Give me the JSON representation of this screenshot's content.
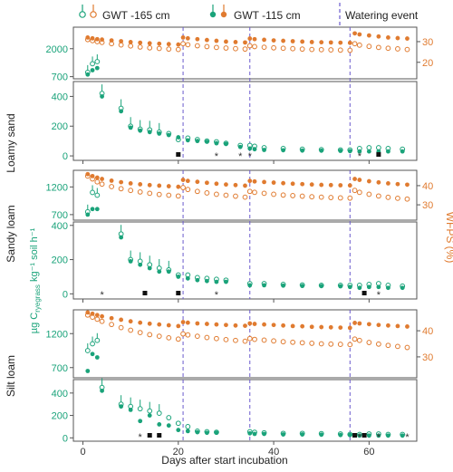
{
  "figure": {
    "x_axis_label": "Days after start incubation",
    "left_axis_label": "µg C",
    "left_axis_label_sub": "ryegrass",
    "left_axis_label_rest": " kg⁻¹ soil h⁻¹",
    "right_axis_label": "WFPS (%)"
  },
  "legend": {
    "gwt165": "GWT -165 cm",
    "gwt115": "GWT -115 cm",
    "watering": "Watering event"
  },
  "colors": {
    "green": "#1aa37a",
    "orange": "#e07b30",
    "watering_line": "#6a5acd"
  },
  "chart_data": [
    {
      "soil": "Loamy sand",
      "type": "scatter",
      "x_ticks": [
        0,
        20,
        40,
        60
      ],
      "watering_days": [
        21,
        35,
        56
      ],
      "top": {
        "left_ticks": [
          700,
          2000
        ],
        "ylim": [
          600,
          3000
        ],
        "right_ticks": [
          20,
          30
        ],
        "rlim": [
          12,
          37
        ],
        "wfps": {
          "x": [
            1,
            2,
            3,
            4,
            6,
            8,
            10,
            12,
            14,
            16,
            18,
            20,
            21,
            22,
            24,
            26,
            28,
            30,
            32,
            34,
            35,
            36,
            38,
            40,
            42,
            44,
            46,
            48,
            50,
            52,
            54,
            56,
            57,
            58,
            60,
            62,
            64,
            66,
            68
          ],
          "gwt115": [
            32,
            31.6,
            31.2,
            31,
            30.6,
            30.2,
            29.8,
            29.5,
            29.2,
            29,
            28.8,
            28.6,
            32,
            31.6,
            31.2,
            30.8,
            30.4,
            30,
            29.8,
            29.6,
            31.5,
            31.2,
            30.9,
            30.6,
            30.4,
            30.2,
            30,
            29.8,
            29.7,
            29.6,
            29.5,
            29.4,
            34,
            33.5,
            33,
            32.5,
            32,
            31.7,
            31.5
          ],
          "gwt165": [
            31,
            30.5,
            30,
            29.6,
            29,
            28.4,
            27.9,
            27.4,
            27,
            26.7,
            26.4,
            26.2,
            29,
            28.5,
            28,
            27.6,
            27.2,
            26.9,
            26.6,
            26.4,
            28,
            27.6,
            27.3,
            27,
            26.8,
            26.6,
            26.4,
            26.2,
            26.1,
            26,
            25.9,
            25.8,
            29,
            28.3,
            27.7,
            27.2,
            26.8,
            26.5,
            26.2
          ]
        },
        "resp": {
          "x": [
            1,
            2,
            3
          ],
          "gwt115": [
            800,
            1000,
            1100
          ],
          "gwt165": [
            900,
            1300,
            1400
          ]
        }
      },
      "bottom": {
        "left_ticks": [
          0,
          200,
          400
        ],
        "ylim": [
          -30,
          500
        ],
        "resp": {
          "x": [
            4,
            8,
            10,
            12,
            14,
            16,
            18,
            20,
            22,
            24,
            26,
            28,
            30,
            33,
            35,
            36,
            38,
            42,
            46,
            50,
            54,
            56,
            58,
            60,
            62,
            64,
            67
          ],
          "gwt115": [
            400,
            300,
            190,
            170,
            160,
            150,
            140,
            125,
            105,
            100,
            95,
            85,
            80,
            60,
            50,
            45,
            40,
            38,
            36,
            35,
            34,
            32,
            30,
            30,
            30,
            30,
            30
          ],
          "gwt165": [
            420,
            320,
            200,
            180,
            175,
            160,
            150,
            110,
            120,
            110,
            100,
            95,
            85,
            70,
            70,
            65,
            55,
            50,
            45,
            42,
            40,
            40,
            50,
            55,
            55,
            50,
            45
          ]
        },
        "stars": [
          28,
          33,
          35,
          58
        ],
        "squares": [
          20,
          62
        ]
      }
    },
    {
      "soil": "Sandy loam",
      "type": "scatter",
      "x_ticks": [
        0,
        20,
        40,
        60
      ],
      "watering_days": [
        21,
        35,
        56
      ],
      "top": {
        "left_ticks": [
          700,
          1200
        ],
        "ylim": [
          600,
          1500
        ],
        "right_ticks": [
          30,
          40
        ],
        "rlim": [
          22,
          48
        ],
        "wfps": {
          "x": [
            1,
            2,
            3,
            4,
            6,
            8,
            10,
            12,
            14,
            16,
            18,
            20,
            21,
            22,
            24,
            26,
            28,
            30,
            32,
            34,
            35,
            36,
            38,
            40,
            42,
            44,
            46,
            48,
            50,
            52,
            54,
            56,
            57,
            58,
            60,
            62,
            64,
            66,
            68
          ],
          "gwt115": [
            46,
            45,
            44.2,
            43.5,
            42.6,
            41.8,
            41.2,
            40.7,
            40.3,
            40,
            39.7,
            39.4,
            43,
            42.5,
            42,
            41.5,
            41,
            40.6,
            40.3,
            40,
            42.5,
            42.2,
            41.9,
            41.6,
            41.3,
            41,
            40.8,
            40.6,
            40.4,
            40.3,
            40.2,
            40.1,
            43.5,
            43,
            42.3,
            41.7,
            41.2,
            40.8,
            40.5
          ],
          "gwt165": [
            45,
            43.5,
            42,
            40.8,
            39.5,
            38.4,
            37.5,
            36.7,
            36,
            35.4,
            35,
            34.6,
            39,
            38,
            37,
            36.2,
            35.5,
            35,
            34.5,
            34,
            37,
            36.5,
            36,
            35.5,
            35.1,
            34.8,
            34.5,
            34.2,
            34,
            33.8,
            33.6,
            33.5,
            37.5,
            36.5,
            35.5,
            34.6,
            33.9,
            33.4,
            33
          ]
        },
        "resp": {
          "x": [
            1,
            2,
            3
          ],
          "gwt115": [
            700,
            800,
            800
          ],
          "gwt165": [
            750,
            1100,
            1050
          ]
        }
      },
      "bottom": {
        "left_ticks": [
          0,
          200,
          400
        ],
        "ylim": [
          -30,
          420
        ],
        "resp": {
          "x": [
            8,
            10,
            12,
            14,
            16,
            18,
            20,
            22,
            24,
            26,
            28,
            30,
            35,
            38,
            42,
            46,
            50,
            54,
            56,
            58,
            60,
            62,
            64,
            67
          ],
          "gwt115": [
            330,
            190,
            170,
            150,
            130,
            130,
            100,
            90,
            80,
            75,
            70,
            70,
            50,
            50,
            48,
            46,
            45,
            44,
            40,
            35,
            40,
            40,
            35,
            35
          ],
          "gwt165": [
            350,
            200,
            190,
            170,
            150,
            140,
            110,
            110,
            95,
            90,
            85,
            80,
            60,
            60,
            55,
            52,
            50,
            50,
            50,
            50,
            55,
            60,
            50,
            45
          ]
        },
        "stars": [
          4,
          28,
          62
        ],
        "squares": [
          13,
          20,
          59
        ]
      }
    },
    {
      "soil": "Silt loam",
      "type": "scatter",
      "x_ticks": [
        0,
        20,
        40,
        60
      ],
      "watering_days": [
        21,
        35,
        56
      ],
      "top": {
        "left_ticks": [
          700,
          1200
        ],
        "ylim": [
          550,
          1550
        ],
        "right_ticks": [
          30,
          40
        ],
        "rlim": [
          22,
          48
        ],
        "wfps": {
          "x": [
            1,
            2,
            3,
            4,
            6,
            8,
            10,
            12,
            14,
            16,
            18,
            20,
            21,
            22,
            24,
            26,
            28,
            30,
            32,
            34,
            35,
            36,
            38,
            40,
            42,
            44,
            46,
            48,
            50,
            52,
            54,
            56,
            57,
            58,
            60,
            62,
            64,
            66,
            68
          ],
          "gwt115": [
            47,
            46.5,
            46,
            45.5,
            44.8,
            44.2,
            43.6,
            43.1,
            42.7,
            42.4,
            42.1,
            41.8,
            43.3,
            43.1,
            42.8,
            42.6,
            42.4,
            42.2,
            42,
            41.9,
            42.8,
            42.6,
            42.4,
            42.2,
            42,
            41.8,
            41.7,
            41.5,
            41.4,
            41.3,
            41.2,
            41.1,
            43,
            42.8,
            42.5,
            42.2,
            42,
            41.8,
            41.6
          ],
          "gwt165": [
            46,
            45.2,
            44.4,
            43.6,
            42.4,
            41.2,
            40.2,
            39.3,
            38.5,
            37.9,
            37.3,
            36.8,
            38.8,
            38.4,
            37.9,
            37.4,
            37,
            36.6,
            36.3,
            36,
            37,
            36.7,
            36.4,
            36.1,
            35.8,
            35.6,
            35.4,
            35.2,
            35,
            34.9,
            34.8,
            34.7,
            36.8,
            36.3,
            35.5,
            34.9,
            34.4,
            34,
            33.6
          ]
        },
        "resp": {
          "x": [
            1,
            2,
            3
          ],
          "gwt115": [
            650,
            900,
            850
          ],
          "gwt165": [
            950,
            1050,
            1100
          ]
        }
      },
      "bottom": {
        "left_ticks": [
          0,
          200,
          400
        ],
        "ylim": [
          -30,
          520
        ],
        "resp": {
          "x": [
            4,
            8,
            10,
            12,
            14,
            16,
            18,
            20,
            22,
            24,
            26,
            28,
            35,
            36,
            38,
            42,
            46,
            50,
            54,
            56,
            58,
            60,
            62,
            64,
            67
          ],
          "gwt115": [
            420,
            280,
            250,
            150,
            200,
            120,
            110,
            70,
            60,
            50,
            45,
            45,
            40,
            35,
            35,
            30,
            30,
            28,
            25,
            25,
            20,
            20,
            20,
            20,
            20
          ],
          "gwt165": [
            450,
            300,
            280,
            260,
            240,
            220,
            180,
            130,
            100,
            60,
            55,
            50,
            55,
            50,
            45,
            40,
            40,
            38,
            35,
            30,
            30,
            35,
            35,
            30,
            30
          ]
        },
        "stars": [
          12,
          58,
          62,
          68
        ],
        "squares": [
          14,
          16,
          57,
          59
        ]
      }
    }
  ]
}
